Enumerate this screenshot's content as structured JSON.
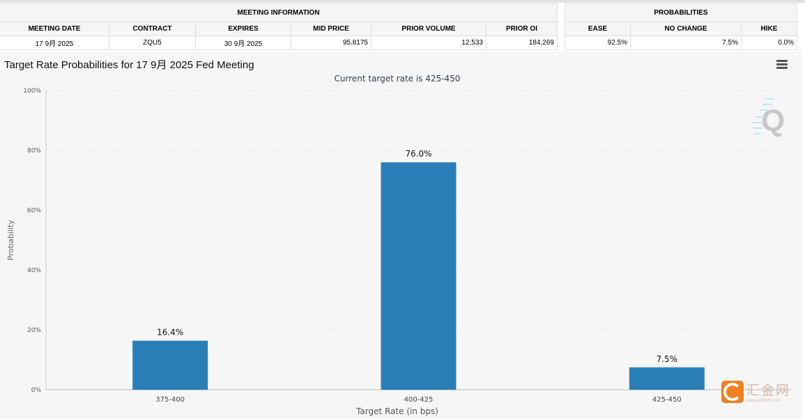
{
  "meeting_info": {
    "title": "MEETING INFORMATION",
    "headers": [
      "MEETING DATE",
      "CONTRACT",
      "EXPIRES",
      "MID PRICE",
      "PRIOR VOLUME",
      "PRIOR OI"
    ],
    "values": [
      "17 9月 2025",
      "ZQU5",
      "30 9月 2025",
      "95.8175",
      "12,533",
      "184,269"
    ]
  },
  "probabilities": {
    "title": "PROBABILITIES",
    "headers": [
      "EASE",
      "NO CHANGE",
      "HIKE"
    ],
    "values": [
      "92.5%",
      "7.5%",
      "0.0%"
    ]
  },
  "logo": {
    "name": "汇金网",
    "url": "www.gold678.com"
  },
  "chart_data": {
    "type": "bar",
    "title": "Target Rate Probabilities for 17 9月 2025 Fed Meeting",
    "subtitle": "Current target rate is 425-450",
    "xlabel": "Target Rate (in bps)",
    "ylabel": "Probability",
    "categories": [
      "375-400",
      "400-425",
      "425-450"
    ],
    "values": [
      16.4,
      76.0,
      7.5
    ],
    "data_labels": [
      "16.4%",
      "76.0%",
      "7.5%"
    ],
    "ylim": [
      0,
      100
    ],
    "yticks": [
      "0%",
      "20%",
      "40%",
      "60%",
      "80%",
      "100%"
    ],
    "grid": true,
    "bar_color": "#2b7fb8"
  }
}
